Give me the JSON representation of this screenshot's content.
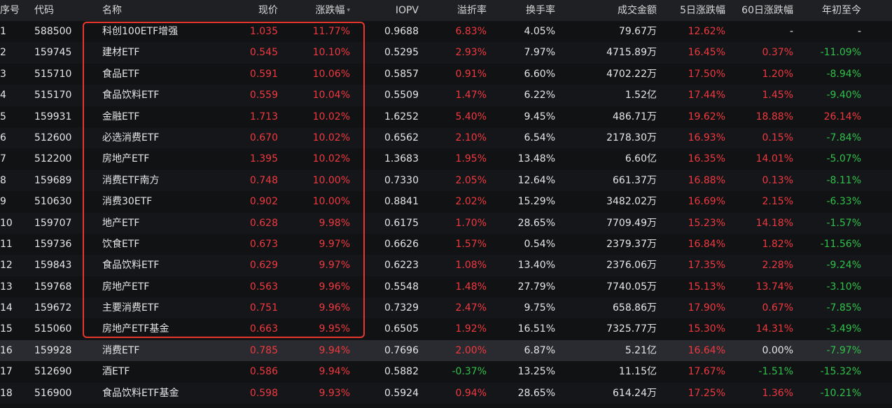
{
  "columns": {
    "idx": "序号",
    "code": "代码",
    "name": "名称",
    "price": "现价",
    "change": "涨跌幅",
    "iopv": "IOPV",
    "premium": "溢折率",
    "turnover": "换手率",
    "volume": "成交金额",
    "d5": "5日涨跌幅",
    "d60": "60日涨跌幅",
    "ytd": "年初至今"
  },
  "sort_icon": "▾",
  "colors": {
    "up": "#f0393f",
    "down": "#2ec24a",
    "highlight": "#e8382e"
  },
  "rows": [
    {
      "idx": "1",
      "code": "588500",
      "name": "科创100ETF增强",
      "price": "1.035",
      "change": "11.77%",
      "iopv": "0.9688",
      "premium": "6.83%",
      "turnover": "4.05%",
      "volume": "79.67万",
      "d5": "12.62%",
      "d60": "-",
      "ytd": "-"
    },
    {
      "idx": "2",
      "code": "159745",
      "name": "建材ETF",
      "price": "0.545",
      "change": "10.10%",
      "iopv": "0.5295",
      "premium": "2.93%",
      "turnover": "7.97%",
      "volume": "4715.89万",
      "d5": "16.45%",
      "d60": "0.37%",
      "ytd": "-11.09%"
    },
    {
      "idx": "3",
      "code": "515710",
      "name": "食品ETF",
      "price": "0.591",
      "change": "10.06%",
      "iopv": "0.5857",
      "premium": "0.91%",
      "turnover": "6.60%",
      "volume": "4702.22万",
      "d5": "17.50%",
      "d60": "1.20%",
      "ytd": "-8.94%"
    },
    {
      "idx": "4",
      "code": "515170",
      "name": "食品饮料ETF",
      "price": "0.559",
      "change": "10.04%",
      "iopv": "0.5509",
      "premium": "1.47%",
      "turnover": "6.22%",
      "volume": "1.52亿",
      "d5": "17.44%",
      "d60": "1.45%",
      "ytd": "-9.40%"
    },
    {
      "idx": "5",
      "code": "159931",
      "name": "金融ETF",
      "price": "1.713",
      "change": "10.02%",
      "iopv": "1.6252",
      "premium": "5.40%",
      "turnover": "9.45%",
      "volume": "486.71万",
      "d5": "19.62%",
      "d60": "18.88%",
      "ytd": "26.14%"
    },
    {
      "idx": "6",
      "code": "512600",
      "name": "必选消费ETF",
      "price": "0.670",
      "change": "10.02%",
      "iopv": "0.6562",
      "premium": "2.10%",
      "turnover": "6.54%",
      "volume": "2178.30万",
      "d5": "16.93%",
      "d60": "0.15%",
      "ytd": "-7.84%"
    },
    {
      "idx": "7",
      "code": "512200",
      "name": "房地产ETF",
      "price": "1.395",
      "change": "10.02%",
      "iopv": "1.3683",
      "premium": "1.95%",
      "turnover": "13.48%",
      "volume": "6.60亿",
      "d5": "16.35%",
      "d60": "14.01%",
      "ytd": "-5.07%"
    },
    {
      "idx": "8",
      "code": "159689",
      "name": "消费ETF南方",
      "price": "0.748",
      "change": "10.00%",
      "iopv": "0.7330",
      "premium": "2.05%",
      "turnover": "12.64%",
      "volume": "661.37万",
      "d5": "16.88%",
      "d60": "0.13%",
      "ytd": "-8.11%"
    },
    {
      "idx": "9",
      "code": "510630",
      "name": "消费30ETF",
      "price": "0.902",
      "change": "10.00%",
      "iopv": "0.8841",
      "premium": "2.02%",
      "turnover": "15.29%",
      "volume": "3482.02万",
      "d5": "16.69%",
      "d60": "2.15%",
      "ytd": "-6.33%"
    },
    {
      "idx": "10",
      "code": "159707",
      "name": "地产ETF",
      "price": "0.628",
      "change": "9.98%",
      "iopv": "0.6175",
      "premium": "1.70%",
      "turnover": "28.65%",
      "volume": "7709.49万",
      "d5": "15.23%",
      "d60": "14.18%",
      "ytd": "-1.57%"
    },
    {
      "idx": "11",
      "code": "159736",
      "name": "饮食ETF",
      "price": "0.673",
      "change": "9.97%",
      "iopv": "0.6626",
      "premium": "1.57%",
      "turnover": "0.54%",
      "volume": "2379.37万",
      "d5": "16.84%",
      "d60": "1.82%",
      "ytd": "-11.56%"
    },
    {
      "idx": "12",
      "code": "159843",
      "name": "食品饮料ETF",
      "price": "0.629",
      "change": "9.97%",
      "iopv": "0.6223",
      "premium": "1.08%",
      "turnover": "13.40%",
      "volume": "2376.06万",
      "d5": "17.35%",
      "d60": "2.28%",
      "ytd": "-9.24%"
    },
    {
      "idx": "13",
      "code": "159768",
      "name": "房地产ETF",
      "price": "0.563",
      "change": "9.96%",
      "iopv": "0.5548",
      "premium": "1.48%",
      "turnover": "27.79%",
      "volume": "7740.05万",
      "d5": "15.13%",
      "d60": "13.74%",
      "ytd": "-3.10%"
    },
    {
      "idx": "14",
      "code": "159672",
      "name": "主要消费ETF",
      "price": "0.751",
      "change": "9.96%",
      "iopv": "0.7329",
      "premium": "2.47%",
      "turnover": "9.75%",
      "volume": "658.86万",
      "d5": "17.90%",
      "d60": "0.67%",
      "ytd": "-7.85%"
    },
    {
      "idx": "15",
      "code": "515060",
      "name": "房地产ETF基金",
      "price": "0.663",
      "change": "9.95%",
      "iopv": "0.6505",
      "premium": "1.92%",
      "turnover": "16.51%",
      "volume": "7325.77万",
      "d5": "15.30%",
      "d60": "14.31%",
      "ytd": "-3.49%"
    },
    {
      "idx": "16",
      "code": "159928",
      "name": "消费ETF",
      "price": "0.785",
      "change": "9.94%",
      "iopv": "0.7696",
      "premium": "2.00%",
      "turnover": "6.87%",
      "volume": "5.21亿",
      "d5": "16.64%",
      "d60": "0.00%",
      "ytd": "-7.97%"
    },
    {
      "idx": "17",
      "code": "512690",
      "name": "酒ETF",
      "price": "0.586",
      "change": "9.94%",
      "iopv": "0.5882",
      "premium": "-0.37%",
      "turnover": "13.25%",
      "volume": "11.15亿",
      "d5": "17.67%",
      "d60": "-1.51%",
      "ytd": "-15.32%"
    },
    {
      "idx": "18",
      "code": "516900",
      "name": "食品饮料ETF基金",
      "price": "0.598",
      "change": "9.93%",
      "iopv": "0.5924",
      "premium": "0.94%",
      "turnover": "28.65%",
      "volume": "614.24万",
      "d5": "17.25%",
      "d60": "1.36%",
      "ytd": "-10.21%"
    }
  ]
}
